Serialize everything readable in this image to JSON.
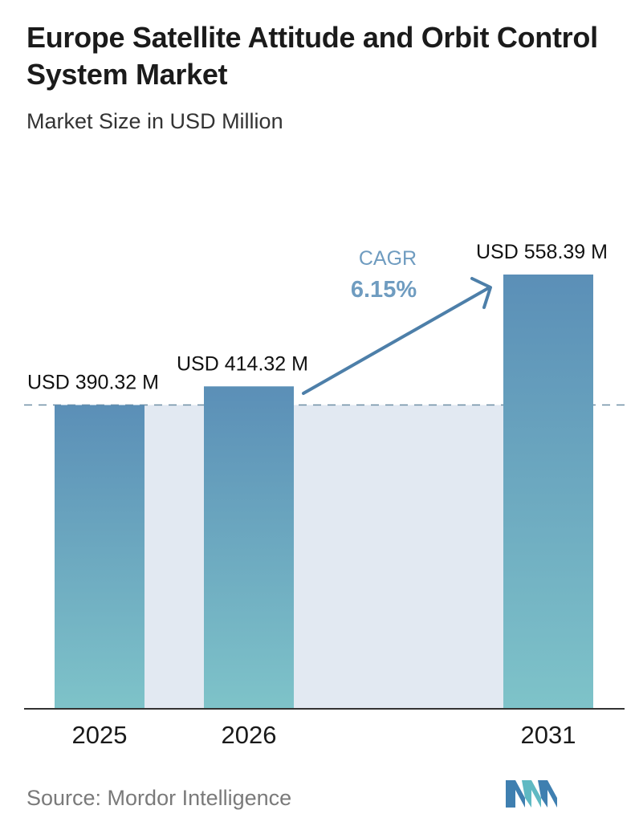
{
  "header": {
    "title": "Europe Satellite Attitude and Orbit Control System Market",
    "subtitle": "Market Size in USD Million"
  },
  "chart_data": {
    "type": "bar",
    "categories": [
      "2025",
      "2026",
      "2031"
    ],
    "values": [
      390.32,
      414.32,
      558.39
    ],
    "value_labels": [
      "USD 390.32 M",
      "USD 414.32 M",
      "USD 558.39 M"
    ],
    "unit": "USD Million",
    "cagr_label": "CAGR",
    "cagr_value": "6.15%",
    "colors": {
      "bar_top": "#5b8fb7",
      "bar_bottom": "#7ec3c9",
      "band": "#e2e9f2",
      "arrow": "#4d7fa9",
      "cagr_text": "#6f9cc0",
      "reference_line": "#6f8fa5"
    },
    "grid": false,
    "legend": "none"
  },
  "footer": {
    "source": "Source: Mordor Intelligence",
    "logo_icon": "mordor-intelligence-logo-icon"
  }
}
